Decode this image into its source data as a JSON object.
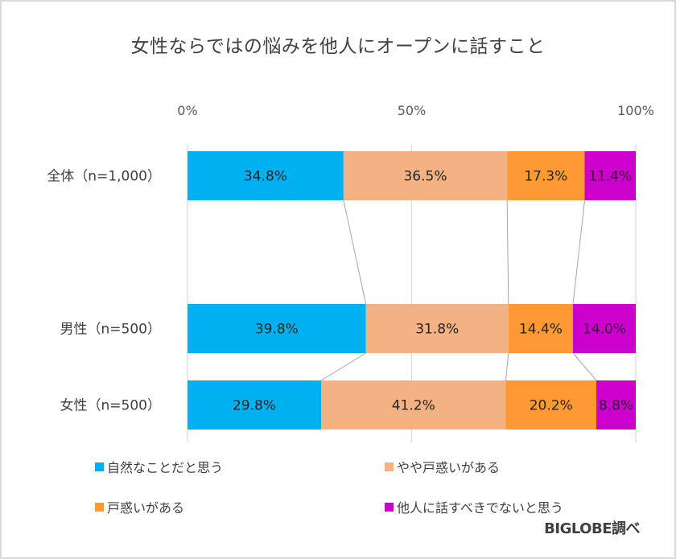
{
  "chart_data": {
    "type": "bar",
    "orientation": "horizontal",
    "stacked": "100%",
    "title": "女性ならではの悩みを他人にオープンに話すこと",
    "xlabel": "",
    "ylabel": "",
    "xlim": [
      0,
      100
    ],
    "x_ticks": [
      "0%",
      "50%",
      "100%"
    ],
    "grid": true,
    "series_lines": true,
    "legend_position": "bottom",
    "categories": [
      "全体（n=1,000）",
      "男性（n=500）",
      "女性（n=500）"
    ],
    "series": [
      {
        "name": "自然なことだと思う",
        "color": "#00b0f0",
        "values": [
          34.8,
          39.8,
          29.8
        ],
        "labels": [
          "34.8%",
          "39.8%",
          "29.8%"
        ]
      },
      {
        "name": "やや戸惑いがある",
        "color": "#f4b183",
        "values": [
          36.5,
          31.8,
          41.2
        ],
        "labels": [
          "36.5%",
          "31.8%",
          "41.2%"
        ]
      },
      {
        "name": "戸惑いがある",
        "color": "#ff9933",
        "values": [
          17.3,
          14.4,
          20.2
        ],
        "labels": [
          "17.3%",
          "14.4%",
          "20.2%"
        ]
      },
      {
        "name": "他人に話すべきでないと思う",
        "color": "#cc00cc",
        "values": [
          11.4,
          14.0,
          8.8
        ],
        "labels": [
          "11.4%",
          "14.0%",
          "8.8%"
        ]
      }
    ],
    "source": "BIGLOBE調べ"
  }
}
